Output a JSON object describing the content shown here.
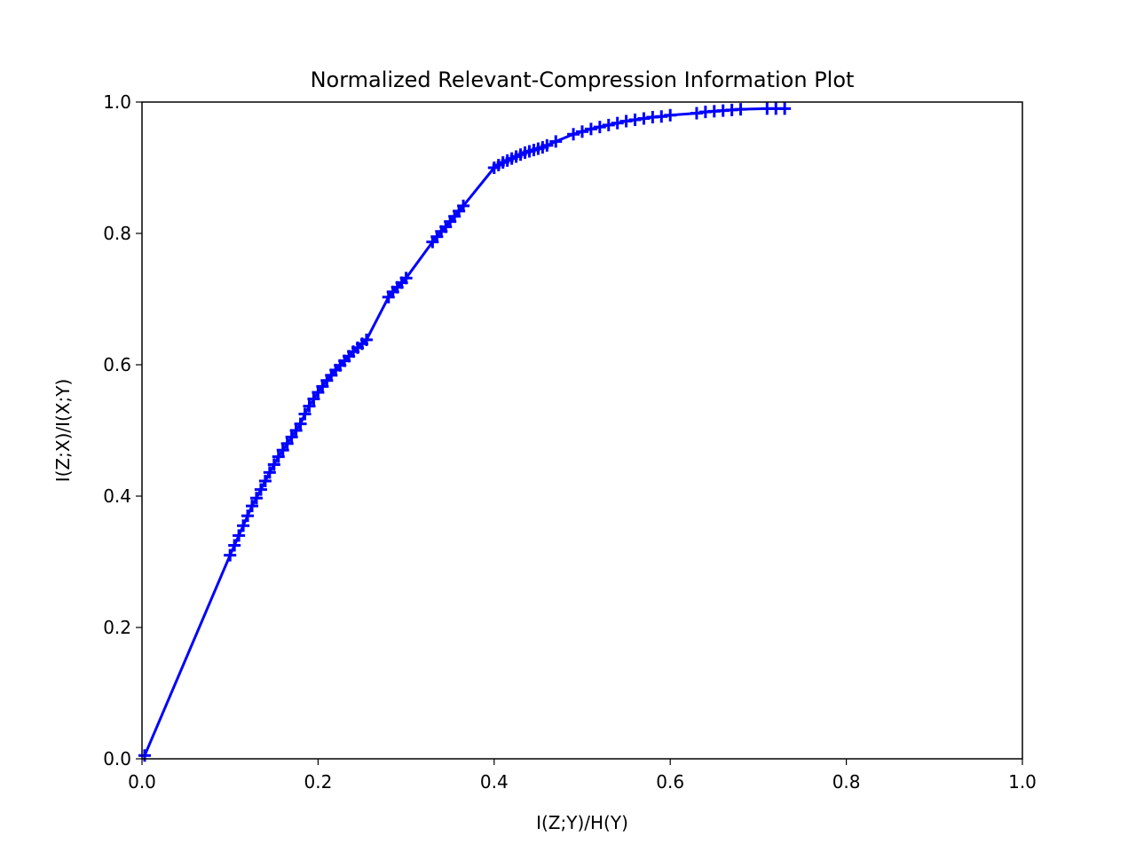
{
  "chart_data": {
    "type": "line",
    "title": "Normalized Relevant-Compression Information Plot",
    "xlabel": "I(Z;Y)/H(Y)",
    "ylabel": "I(Z;X)/I(X;Y)",
    "xlim": [
      0.0,
      1.0
    ],
    "ylim": [
      0.0,
      1.0
    ],
    "xticks": [
      "0.0",
      "0.2",
      "0.4",
      "0.6",
      "0.8",
      "1.0"
    ],
    "yticks": [
      "0.0",
      "0.2",
      "0.4",
      "0.6",
      "0.8",
      "1.0"
    ],
    "grid": false,
    "legend": "none",
    "series": [
      {
        "color": "#0000ff",
        "marker": "plus",
        "x": [
          0.003,
          0.1,
          0.105,
          0.11,
          0.115,
          0.12,
          0.125,
          0.13,
          0.135,
          0.14,
          0.145,
          0.15,
          0.155,
          0.16,
          0.165,
          0.17,
          0.175,
          0.18,
          0.185,
          0.19,
          0.195,
          0.2,
          0.205,
          0.21,
          0.215,
          0.22,
          0.225,
          0.23,
          0.235,
          0.24,
          0.245,
          0.25,
          0.255,
          0.28,
          0.285,
          0.29,
          0.295,
          0.3,
          0.33,
          0.335,
          0.34,
          0.345,
          0.35,
          0.355,
          0.36,
          0.365,
          0.4,
          0.405,
          0.41,
          0.415,
          0.42,
          0.425,
          0.43,
          0.435,
          0.44,
          0.445,
          0.45,
          0.455,
          0.46,
          0.47,
          0.49,
          0.5,
          0.51,
          0.52,
          0.53,
          0.54,
          0.55,
          0.56,
          0.57,
          0.58,
          0.59,
          0.6,
          0.63,
          0.64,
          0.65,
          0.66,
          0.67,
          0.68,
          0.71,
          0.72,
          0.73
        ],
        "y": [
          0.005,
          0.31,
          0.325,
          0.34,
          0.355,
          0.37,
          0.385,
          0.397,
          0.41,
          0.423,
          0.436,
          0.448,
          0.46,
          0.47,
          0.48,
          0.49,
          0.5,
          0.51,
          0.525,
          0.537,
          0.548,
          0.558,
          0.567,
          0.576,
          0.584,
          0.592,
          0.599,
          0.606,
          0.613,
          0.62,
          0.626,
          0.632,
          0.638,
          0.703,
          0.711,
          0.718,
          0.725,
          0.732,
          0.787,
          0.795,
          0.803,
          0.81,
          0.818,
          0.826,
          0.834,
          0.842,
          0.9,
          0.904,
          0.908,
          0.911,
          0.914,
          0.917,
          0.92,
          0.923,
          0.925,
          0.927,
          0.929,
          0.931,
          0.934,
          0.94,
          0.951,
          0.955,
          0.959,
          0.962,
          0.965,
          0.968,
          0.971,
          0.973,
          0.975,
          0.977,
          0.978,
          0.98,
          0.983,
          0.985,
          0.986,
          0.987,
          0.988,
          0.989,
          0.99,
          0.99,
          0.99
        ]
      }
    ]
  }
}
